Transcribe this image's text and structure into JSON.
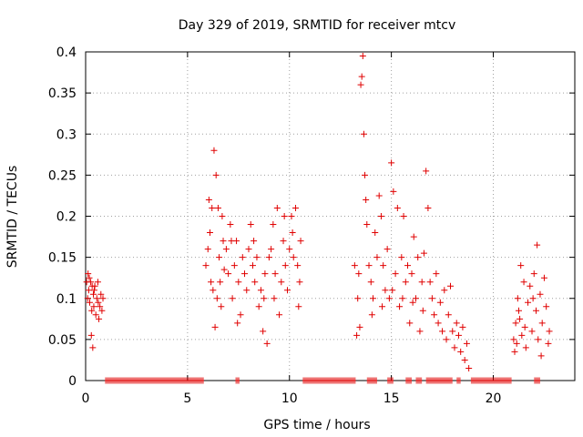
{
  "chart_data": {
    "type": "scatter",
    "title": "Day 329 of 2019, SRMTID for receiver mtcv",
    "xlabel": "GPS time / hours",
    "ylabel": "SRMTID / TECUs",
    "xlim": [
      0,
      24
    ],
    "ylim": [
      0,
      0.4
    ],
    "xticks": [
      0,
      5,
      10,
      15,
      20
    ],
    "yticks": [
      0,
      0.05,
      0.1,
      0.15,
      0.2,
      0.25,
      0.3,
      0.35,
      0.4
    ],
    "ytick_labels": [
      "0",
      "0.05",
      "0.1",
      "0.15",
      "0.2",
      "0.25",
      "0.3",
      "0.35",
      "0.4"
    ],
    "grid": true,
    "marker": "plus",
    "color": "#e00000",
    "series": [
      {
        "name": "SRMTID",
        "points": [
          [
            0.05,
            0.12
          ],
          [
            0.1,
            0.1
          ],
          [
            0.12,
            0.13
          ],
          [
            0.15,
            0.11
          ],
          [
            0.2,
            0.095
          ],
          [
            0.25,
            0.12
          ],
          [
            0.3,
            0.085
          ],
          [
            0.32,
            0.115
          ],
          [
            0.35,
            0.04
          ],
          [
            0.38,
            0.105
          ],
          [
            0.4,
            0.09
          ],
          [
            0.45,
            0.115
          ],
          [
            0.5,
            0.08
          ],
          [
            0.55,
            0.1
          ],
          [
            0.6,
            0.12
          ],
          [
            0.65,
            0.075
          ],
          [
            0.7,
            0.09
          ],
          [
            0.75,
            0.105
          ],
          [
            0.8,
            0.085
          ],
          [
            0.85,
            0.1
          ],
          [
            0.28,
            0.055
          ],
          [
            0.18,
            0.125
          ],
          [
            0.42,
            0.11
          ],
          [
            0.62,
            0.095
          ],
          [
            5.9,
            0.14
          ],
          [
            6.0,
            0.16
          ],
          [
            6.1,
            0.18
          ],
          [
            6.15,
            0.12
          ],
          [
            6.2,
            0.21
          ],
          [
            6.25,
            0.11
          ],
          [
            6.3,
            0.28
          ],
          [
            6.35,
            0.065
          ],
          [
            6.4,
            0.25
          ],
          [
            6.45,
            0.1
          ],
          [
            6.5,
            0.21
          ],
          [
            6.55,
            0.15
          ],
          [
            6.6,
            0.12
          ],
          [
            6.7,
            0.2
          ],
          [
            6.75,
            0.17
          ],
          [
            6.8,
            0.135
          ],
          [
            6.9,
            0.16
          ],
          [
            7.0,
            0.13
          ],
          [
            7.1,
            0.19
          ],
          [
            7.2,
            0.1
          ],
          [
            7.3,
            0.14
          ],
          [
            7.4,
            0.17
          ],
          [
            7.5,
            0.12
          ],
          [
            7.6,
            0.08
          ],
          [
            7.7,
            0.15
          ],
          [
            7.8,
            0.13
          ],
          [
            7.9,
            0.11
          ],
          [
            8.0,
            0.16
          ],
          [
            8.1,
            0.19
          ],
          [
            8.2,
            0.14
          ],
          [
            8.3,
            0.12
          ],
          [
            8.4,
            0.15
          ],
          [
            8.5,
            0.09
          ],
          [
            8.6,
            0.11
          ],
          [
            8.7,
            0.06
          ],
          [
            8.8,
            0.13
          ],
          [
            8.9,
            0.045
          ],
          [
            9.0,
            0.15
          ],
          [
            9.1,
            0.16
          ],
          [
            9.2,
            0.19
          ],
          [
            9.3,
            0.13
          ],
          [
            9.4,
            0.21
          ],
          [
            9.5,
            0.08
          ],
          [
            9.6,
            0.12
          ],
          [
            9.7,
            0.17
          ],
          [
            9.8,
            0.14
          ],
          [
            9.9,
            0.11
          ],
          [
            10.0,
            0.16
          ],
          [
            10.1,
            0.2
          ],
          [
            10.2,
            0.15
          ],
          [
            10.3,
            0.21
          ],
          [
            10.4,
            0.14
          ],
          [
            10.5,
            0.12
          ],
          [
            10.55,
            0.17
          ],
          [
            6.05,
            0.22
          ],
          [
            6.65,
            0.09
          ],
          [
            7.15,
            0.17
          ],
          [
            7.45,
            0.07
          ],
          [
            8.25,
            0.17
          ],
          [
            8.75,
            0.1
          ],
          [
            9.25,
            0.1
          ],
          [
            9.75,
            0.2
          ],
          [
            10.15,
            0.18
          ],
          [
            10.45,
            0.09
          ],
          [
            13.2,
            0.14
          ],
          [
            13.3,
            0.055
          ],
          [
            13.35,
            0.1
          ],
          [
            13.4,
            0.13
          ],
          [
            13.5,
            0.36
          ],
          [
            13.55,
            0.37
          ],
          [
            13.6,
            0.395
          ],
          [
            13.65,
            0.3
          ],
          [
            13.7,
            0.25
          ],
          [
            13.75,
            0.22
          ],
          [
            13.8,
            0.19
          ],
          [
            13.9,
            0.14
          ],
          [
            14.0,
            0.12
          ],
          [
            14.1,
            0.1
          ],
          [
            14.2,
            0.18
          ],
          [
            14.3,
            0.15
          ],
          [
            14.4,
            0.225
          ],
          [
            14.5,
            0.2
          ],
          [
            14.6,
            0.14
          ],
          [
            14.7,
            0.11
          ],
          [
            14.8,
            0.16
          ],
          [
            14.9,
            0.1
          ],
          [
            15.0,
            0.265
          ],
          [
            15.1,
            0.23
          ],
          [
            15.2,
            0.13
          ],
          [
            15.3,
            0.21
          ],
          [
            15.4,
            0.09
          ],
          [
            15.5,
            0.15
          ],
          [
            15.6,
            0.2
          ],
          [
            15.7,
            0.12
          ],
          [
            15.8,
            0.14
          ],
          [
            15.9,
            0.07
          ],
          [
            16.0,
            0.13
          ],
          [
            16.1,
            0.175
          ],
          [
            16.2,
            0.1
          ],
          [
            16.3,
            0.15
          ],
          [
            16.4,
            0.06
          ],
          [
            16.5,
            0.12
          ],
          [
            16.6,
            0.155
          ],
          [
            16.7,
            0.255
          ],
          [
            16.8,
            0.21
          ],
          [
            16.9,
            0.12
          ],
          [
            17.0,
            0.1
          ],
          [
            17.1,
            0.08
          ],
          [
            17.2,
            0.13
          ],
          [
            17.3,
            0.07
          ],
          [
            17.4,
            0.095
          ],
          [
            17.5,
            0.06
          ],
          [
            17.6,
            0.11
          ],
          [
            17.7,
            0.05
          ],
          [
            17.8,
            0.08
          ],
          [
            17.9,
            0.115
          ],
          [
            18.0,
            0.06
          ],
          [
            18.1,
            0.04
          ],
          [
            18.2,
            0.07
          ],
          [
            18.3,
            0.055
          ],
          [
            18.4,
            0.035
          ],
          [
            18.5,
            0.065
          ],
          [
            18.6,
            0.025
          ],
          [
            18.7,
            0.045
          ],
          [
            18.8,
            0.015
          ],
          [
            13.45,
            0.065
          ],
          [
            14.05,
            0.08
          ],
          [
            14.55,
            0.09
          ],
          [
            15.05,
            0.11
          ],
          [
            15.55,
            0.1
          ],
          [
            16.05,
            0.095
          ],
          [
            16.55,
            0.085
          ],
          [
            21.0,
            0.05
          ],
          [
            21.05,
            0.035
          ],
          [
            21.1,
            0.07
          ],
          [
            21.15,
            0.045
          ],
          [
            21.2,
            0.1
          ],
          [
            21.3,
            0.075
          ],
          [
            21.35,
            0.14
          ],
          [
            21.4,
            0.055
          ],
          [
            21.5,
            0.12
          ],
          [
            21.6,
            0.04
          ],
          [
            21.7,
            0.095
          ],
          [
            21.8,
            0.115
          ],
          [
            21.9,
            0.06
          ],
          [
            22.0,
            0.13
          ],
          [
            22.1,
            0.085
          ],
          [
            22.15,
            0.165
          ],
          [
            22.2,
            0.05
          ],
          [
            22.3,
            0.105
          ],
          [
            22.4,
            0.07
          ],
          [
            22.5,
            0.125
          ],
          [
            22.6,
            0.09
          ],
          [
            22.7,
            0.045
          ],
          [
            22.75,
            0.06
          ],
          [
            21.25,
            0.085
          ],
          [
            21.55,
            0.065
          ],
          [
            21.95,
            0.1
          ],
          [
            22.35,
            0.03
          ]
        ],
        "zero_ranges": [
          [
            0.95,
            5.8
          ],
          [
            7.35,
            7.55
          ],
          [
            10.65,
            13.25
          ],
          [
            13.8,
            14.3
          ],
          [
            14.8,
            15.1
          ],
          [
            15.7,
            16.0
          ],
          [
            16.2,
            16.5
          ],
          [
            16.7,
            18.0
          ],
          [
            18.2,
            18.4
          ],
          [
            18.9,
            20.9
          ],
          [
            22.0,
            22.3
          ]
        ]
      }
    ]
  }
}
